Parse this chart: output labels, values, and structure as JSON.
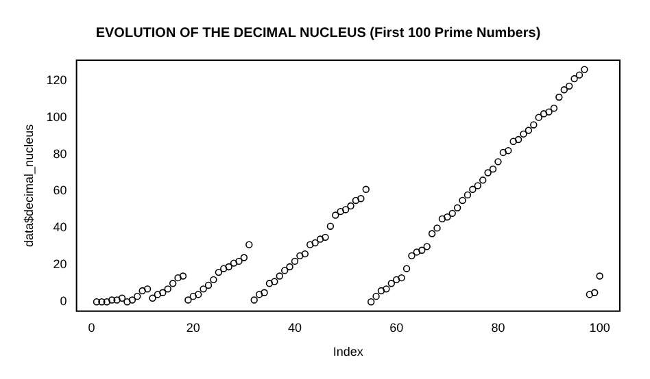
{
  "chart_data": {
    "type": "scatter",
    "title": "EVOLUTION OF THE DECIMAL NUCLEUS (First 100 Prime Numbers)",
    "xlabel": "Index",
    "ylabel": "data$decimal_nucleus",
    "x": [
      1,
      2,
      3,
      4,
      5,
      6,
      7,
      8,
      9,
      10,
      11,
      12,
      13,
      14,
      15,
      16,
      17,
      18,
      19,
      20,
      21,
      22,
      23,
      24,
      25,
      26,
      27,
      28,
      29,
      30,
      31,
      32,
      33,
      34,
      35,
      36,
      37,
      38,
      39,
      40,
      41,
      42,
      43,
      44,
      45,
      46,
      47,
      48,
      49,
      50,
      51,
      52,
      53,
      54,
      55,
      56,
      57,
      58,
      59,
      60,
      61,
      62,
      63,
      64,
      65,
      66,
      67,
      68,
      69,
      70,
      71,
      72,
      73,
      74,
      75,
      76,
      77,
      78,
      79,
      80,
      81,
      82,
      83,
      84,
      85,
      86,
      87,
      88,
      89,
      90,
      91,
      92,
      93,
      94,
      95,
      96,
      97,
      98,
      99,
      100
    ],
    "values": [
      0,
      0,
      0,
      1,
      1,
      2,
      0,
      1,
      3,
      6,
      7,
      2,
      4,
      5,
      7,
      10,
      13,
      14,
      1,
      3,
      4,
      7,
      9,
      12,
      16,
      18,
      19,
      21,
      22,
      24,
      31,
      1,
      4,
      5,
      10,
      11,
      14,
      17,
      19,
      22,
      25,
      26,
      31,
      32,
      34,
      35,
      41,
      47,
      49,
      50,
      52,
      55,
      56,
      61,
      0,
      3,
      6,
      7,
      10,
      12,
      13,
      18,
      25,
      27,
      28,
      30,
      37,
      40,
      45,
      46,
      48,
      51,
      55,
      58,
      61,
      63,
      66,
      70,
      72,
      76,
      81,
      82,
      87,
      88,
      91,
      93,
      96,
      100,
      102,
      103,
      105,
      111,
      115,
      117,
      121,
      123,
      126,
      4,
      5,
      14
    ],
    "color": "#000000",
    "marker": "circle",
    "xlim": [
      -2.96,
      103.96
    ],
    "ylim": [
      -5.04,
      131.04
    ],
    "xticks": [
      0,
      20,
      40,
      60,
      80,
      100
    ],
    "yticks": [
      0,
      20,
      40,
      60,
      80,
      100,
      120
    ],
    "grid": false,
    "legend": false
  }
}
